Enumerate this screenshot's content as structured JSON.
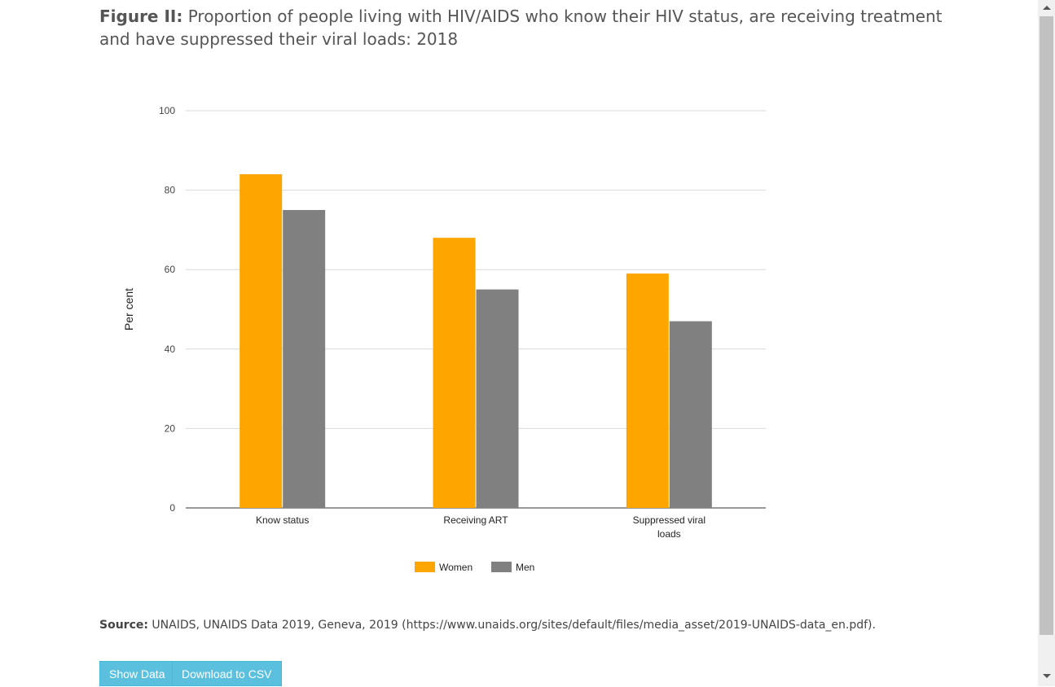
{
  "figure": {
    "title_lead": "Figure II:",
    "title_text": " Proportion of people living with HIV/AIDS who know their HIV status, are receiving treatment and have suppressed their viral loads: 2018"
  },
  "chart_data": {
    "type": "bar",
    "categories": [
      "Know status",
      "Receiving ART",
      "Suppressed viral loads"
    ],
    "series": [
      {
        "name": "Women",
        "color": "#FFA500",
        "values": [
          84,
          68,
          59
        ]
      },
      {
        "name": "Men",
        "color": "#808080",
        "values": [
          75,
          55,
          47
        ]
      }
    ],
    "ylabel": "Per cent",
    "xlabel": "",
    "ylim": [
      0,
      100
    ],
    "yticks": [
      0,
      20,
      40,
      60,
      80,
      100
    ],
    "grid": true,
    "legend_position": "bottom"
  },
  "source": {
    "label": "Source:",
    "text": " UNAIDS, UNAIDS Data 2019, Geneva, 2019 (https://www.unaids.org/sites/default/files/media_asset/2019-UNAIDS-data_en.pdf)."
  },
  "buttons": {
    "show_data": "Show Data",
    "download_csv": "Download to CSV"
  }
}
